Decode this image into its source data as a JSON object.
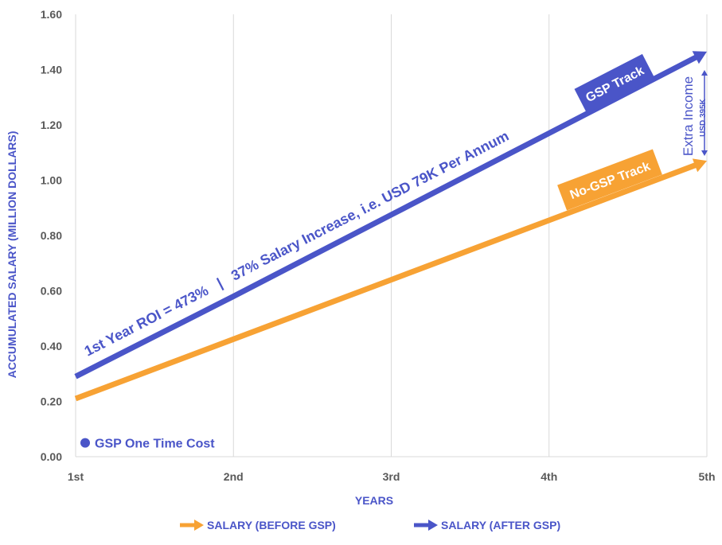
{
  "chart_data": {
    "type": "line",
    "title": "",
    "xlabel": "YEARS",
    "ylabel": "ACCUMULATED SALARY (MILLION DOLLARS)",
    "categories": [
      "1st",
      "2nd",
      "3rd",
      "4th",
      "5th"
    ],
    "ylim": [
      0,
      1.6
    ],
    "yticks": [
      "0.00",
      "0.20",
      "0.40",
      "0.60",
      "0.80",
      "1.00",
      "1.20",
      "1.40",
      "1.60"
    ],
    "grid": "vertical",
    "legend_position": "bottom",
    "series": [
      {
        "name": "SALARY (BEFORE GSP)",
        "color": "#f7a234",
        "values": [
          0.21,
          0.425,
          0.64,
          0.855,
          1.07
        ]
      },
      {
        "name": "SALARY (AFTER GSP)",
        "color": "#4a55c8",
        "values": [
          0.29,
          0.58,
          0.875,
          1.17,
          1.465
        ]
      }
    ],
    "gsp_cost_point": {
      "label": "GSP One Time Cost",
      "x": "1st",
      "y": 0.05,
      "color": "#4a55c8"
    },
    "annotations": {
      "roi_text": "1st Year ROI = 473%   |   37% Salary Increase, i.e. USD 79K Per Annum",
      "gsp_track_label": "GSP Track",
      "no_gsp_track_label": "No-GSP Track",
      "extra_income_label": "Extra Income",
      "extra_income_amount": "USD 395K"
    }
  }
}
